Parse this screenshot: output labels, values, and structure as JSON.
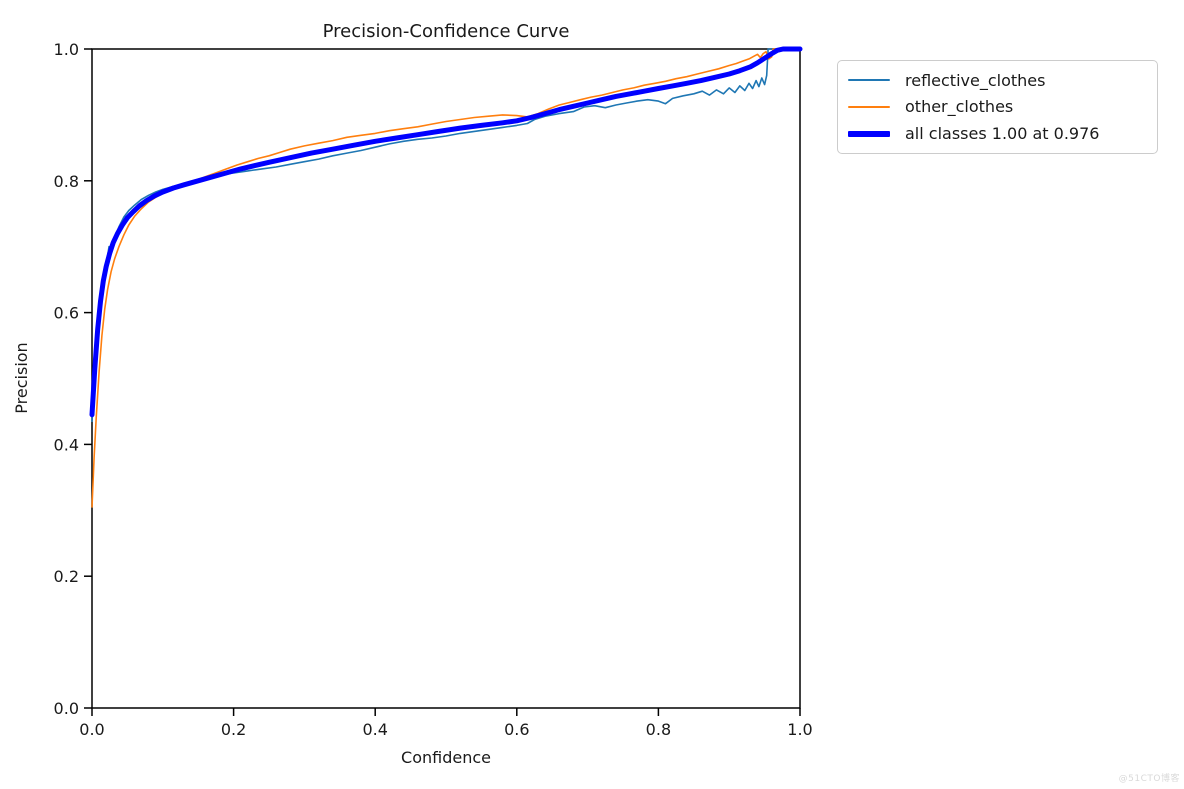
{
  "watermark": {
    "text": "@51CTO博客",
    "color": "#d9d9d9"
  },
  "chart_data": {
    "type": "line",
    "title": "Precision-Confidence Curve",
    "xlabel": "Confidence",
    "ylabel": "Precision",
    "xlim": [
      0.0,
      1.0
    ],
    "ylim": [
      0.0,
      1.0
    ],
    "x_ticks": [
      "0.0",
      "0.2",
      "0.4",
      "0.6",
      "0.8",
      "1.0"
    ],
    "y_ticks": [
      "0.0",
      "0.2",
      "0.4",
      "0.6",
      "0.8",
      "1.0"
    ],
    "grid": false,
    "legend_position": "outside-top-right",
    "series": [
      {
        "name": "reflective_clothes",
        "color": "#1f77b4",
        "width": 1.6,
        "points": [
          [
            0,
            0.435
          ],
          [
            0.004,
            0.5
          ],
          [
            0.008,
            0.565
          ],
          [
            0.012,
            0.615
          ],
          [
            0.016,
            0.648
          ],
          [
            0.02,
            0.672
          ],
          [
            0.024,
            0.7
          ],
          [
            0.028,
            0.695
          ],
          [
            0.032,
            0.715
          ],
          [
            0.038,
            0.73
          ],
          [
            0.045,
            0.745
          ],
          [
            0.052,
            0.755
          ],
          [
            0.06,
            0.763
          ],
          [
            0.07,
            0.772
          ],
          [
            0.08,
            0.778
          ],
          [
            0.09,
            0.783
          ],
          [
            0.1,
            0.787
          ],
          [
            0.12,
            0.793
          ],
          [
            0.14,
            0.798
          ],
          [
            0.16,
            0.804
          ],
          [
            0.18,
            0.808
          ],
          [
            0.2,
            0.812
          ],
          [
            0.22,
            0.815
          ],
          [
            0.24,
            0.818
          ],
          [
            0.26,
            0.821
          ],
          [
            0.28,
            0.825
          ],
          [
            0.3,
            0.829
          ],
          [
            0.32,
            0.833
          ],
          [
            0.34,
            0.838
          ],
          [
            0.36,
            0.842
          ],
          [
            0.38,
            0.846
          ],
          [
            0.4,
            0.851
          ],
          [
            0.42,
            0.856
          ],
          [
            0.44,
            0.86
          ],
          [
            0.46,
            0.863
          ],
          [
            0.48,
            0.865
          ],
          [
            0.5,
            0.868
          ],
          [
            0.52,
            0.872
          ],
          [
            0.54,
            0.875
          ],
          [
            0.56,
            0.878
          ],
          [
            0.58,
            0.881
          ],
          [
            0.6,
            0.884
          ],
          [
            0.615,
            0.887
          ],
          [
            0.625,
            0.893
          ],
          [
            0.64,
            0.898
          ],
          [
            0.66,
            0.902
          ],
          [
            0.68,
            0.905
          ],
          [
            0.695,
            0.912
          ],
          [
            0.71,
            0.914
          ],
          [
            0.725,
            0.911
          ],
          [
            0.74,
            0.915
          ],
          [
            0.755,
            0.918
          ],
          [
            0.77,
            0.921
          ],
          [
            0.785,
            0.923
          ],
          [
            0.8,
            0.921
          ],
          [
            0.81,
            0.917
          ],
          [
            0.82,
            0.925
          ],
          [
            0.835,
            0.929
          ],
          [
            0.85,
            0.932
          ],
          [
            0.862,
            0.936
          ],
          [
            0.872,
            0.93
          ],
          [
            0.882,
            0.938
          ],
          [
            0.892,
            0.932
          ],
          [
            0.9,
            0.941
          ],
          [
            0.908,
            0.934
          ],
          [
            0.915,
            0.944
          ],
          [
            0.922,
            0.937
          ],
          [
            0.928,
            0.948
          ],
          [
            0.933,
            0.94
          ],
          [
            0.938,
            0.952
          ],
          [
            0.942,
            0.943
          ],
          [
            0.946,
            0.956
          ],
          [
            0.95,
            0.946
          ],
          [
            0.953,
            0.96
          ],
          [
            0.955,
            1.0
          ],
          [
            1.0,
            1.0
          ]
        ]
      },
      {
        "name": "other_clothes",
        "color": "#ff7f0e",
        "width": 1.6,
        "points": [
          [
            0,
            0.305
          ],
          [
            0.003,
            0.38
          ],
          [
            0.006,
            0.44
          ],
          [
            0.01,
            0.51
          ],
          [
            0.014,
            0.565
          ],
          [
            0.018,
            0.605
          ],
          [
            0.022,
            0.635
          ],
          [
            0.027,
            0.662
          ],
          [
            0.032,
            0.682
          ],
          [
            0.038,
            0.7
          ],
          [
            0.045,
            0.718
          ],
          [
            0.052,
            0.733
          ],
          [
            0.06,
            0.746
          ],
          [
            0.07,
            0.758
          ],
          [
            0.08,
            0.768
          ],
          [
            0.09,
            0.775
          ],
          [
            0.1,
            0.781
          ],
          [
            0.115,
            0.788
          ],
          [
            0.13,
            0.795
          ],
          [
            0.145,
            0.8
          ],
          [
            0.16,
            0.806
          ],
          [
            0.175,
            0.812
          ],
          [
            0.19,
            0.818
          ],
          [
            0.205,
            0.824
          ],
          [
            0.22,
            0.829
          ],
          [
            0.235,
            0.834
          ],
          [
            0.25,
            0.838
          ],
          [
            0.265,
            0.843
          ],
          [
            0.28,
            0.848
          ],
          [
            0.3,
            0.853
          ],
          [
            0.32,
            0.857
          ],
          [
            0.34,
            0.861
          ],
          [
            0.36,
            0.866
          ],
          [
            0.38,
            0.869
          ],
          [
            0.4,
            0.872
          ],
          [
            0.42,
            0.876
          ],
          [
            0.44,
            0.879
          ],
          [
            0.46,
            0.882
          ],
          [
            0.48,
            0.886
          ],
          [
            0.5,
            0.89
          ],
          [
            0.52,
            0.893
          ],
          [
            0.54,
            0.896
          ],
          [
            0.56,
            0.898
          ],
          [
            0.58,
            0.9
          ],
          [
            0.6,
            0.899
          ],
          [
            0.615,
            0.897
          ],
          [
            0.63,
            0.902
          ],
          [
            0.645,
            0.909
          ],
          [
            0.66,
            0.915
          ],
          [
            0.675,
            0.919
          ],
          [
            0.69,
            0.923
          ],
          [
            0.705,
            0.927
          ],
          [
            0.72,
            0.93
          ],
          [
            0.735,
            0.934
          ],
          [
            0.75,
            0.938
          ],
          [
            0.765,
            0.941
          ],
          [
            0.78,
            0.945
          ],
          [
            0.795,
            0.948
          ],
          [
            0.81,
            0.951
          ],
          [
            0.825,
            0.955
          ],
          [
            0.84,
            0.958
          ],
          [
            0.855,
            0.962
          ],
          [
            0.87,
            0.966
          ],
          [
            0.885,
            0.97
          ],
          [
            0.9,
            0.975
          ],
          [
            0.91,
            0.978
          ],
          [
            0.92,
            0.982
          ],
          [
            0.928,
            0.985
          ],
          [
            0.935,
            0.989
          ],
          [
            0.94,
            0.992
          ],
          [
            0.944,
            0.987
          ],
          [
            0.948,
            0.993
          ],
          [
            0.952,
            0.996
          ],
          [
            0.956,
            0.985
          ],
          [
            0.96,
            0.988
          ],
          [
            0.962,
            1.0
          ],
          [
            1.0,
            1.0
          ]
        ]
      },
      {
        "name": "all classes 1.00 at 0.976",
        "color": "#0000ff",
        "width": 5,
        "points": [
          [
            0,
            0.445
          ],
          [
            0.004,
            0.515
          ],
          [
            0.008,
            0.575
          ],
          [
            0.012,
            0.617
          ],
          [
            0.016,
            0.648
          ],
          [
            0.02,
            0.67
          ],
          [
            0.025,
            0.69
          ],
          [
            0.03,
            0.706
          ],
          [
            0.036,
            0.72
          ],
          [
            0.043,
            0.733
          ],
          [
            0.05,
            0.744
          ],
          [
            0.058,
            0.753
          ],
          [
            0.067,
            0.762
          ],
          [
            0.077,
            0.77
          ],
          [
            0.088,
            0.777
          ],
          [
            0.1,
            0.783
          ],
          [
            0.115,
            0.789
          ],
          [
            0.13,
            0.794
          ],
          [
            0.15,
            0.8
          ],
          [
            0.17,
            0.806
          ],
          [
            0.19,
            0.812
          ],
          [
            0.21,
            0.818
          ],
          [
            0.23,
            0.823
          ],
          [
            0.25,
            0.828
          ],
          [
            0.28,
            0.835
          ],
          [
            0.31,
            0.842
          ],
          [
            0.34,
            0.848
          ],
          [
            0.37,
            0.854
          ],
          [
            0.4,
            0.86
          ],
          [
            0.43,
            0.865
          ],
          [
            0.46,
            0.87
          ],
          [
            0.49,
            0.875
          ],
          [
            0.52,
            0.88
          ],
          [
            0.55,
            0.884
          ],
          [
            0.58,
            0.888
          ],
          [
            0.6,
            0.891
          ],
          [
            0.62,
            0.896
          ],
          [
            0.64,
            0.902
          ],
          [
            0.66,
            0.908
          ],
          [
            0.68,
            0.913
          ],
          [
            0.7,
            0.918
          ],
          [
            0.72,
            0.923
          ],
          [
            0.74,
            0.928
          ],
          [
            0.76,
            0.932
          ],
          [
            0.78,
            0.936
          ],
          [
            0.8,
            0.94
          ],
          [
            0.82,
            0.944
          ],
          [
            0.84,
            0.948
          ],
          [
            0.86,
            0.952
          ],
          [
            0.88,
            0.957
          ],
          [
            0.9,
            0.962
          ],
          [
            0.915,
            0.967
          ],
          [
            0.93,
            0.973
          ],
          [
            0.94,
            0.979
          ],
          [
            0.95,
            0.986
          ],
          [
            0.96,
            0.993
          ],
          [
            0.968,
            0.998
          ],
          [
            0.976,
            1.0
          ],
          [
            1.0,
            1.0
          ]
        ]
      }
    ]
  }
}
